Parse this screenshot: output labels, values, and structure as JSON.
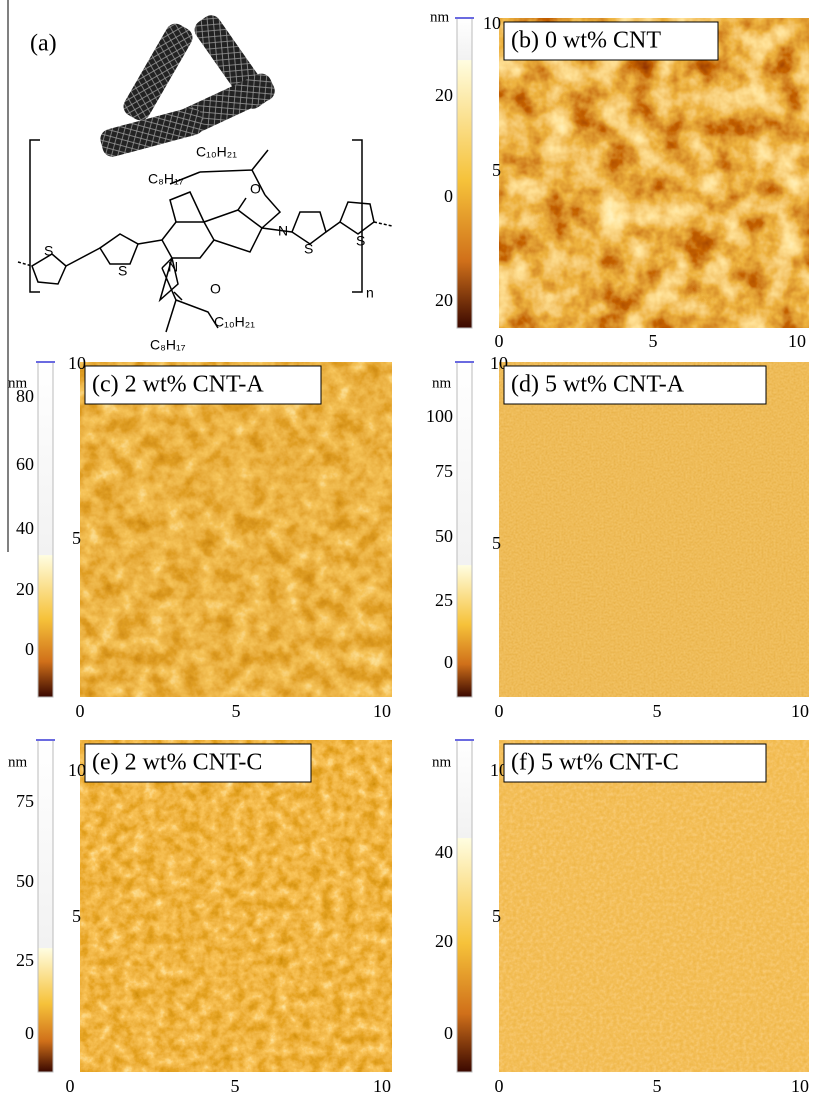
{
  "panel_a": {
    "label": "(a)",
    "atoms": [
      "C₁₀H₂₁",
      "C₈H₁₇",
      "N",
      "O",
      "O",
      "N",
      "C₁₀H₂₁",
      "C₈H₁₇",
      "S",
      "S",
      "S",
      "S",
      "n"
    ]
  },
  "panels": [
    {
      "label": "(b) 0 wt% CNT",
      "unit": "nm",
      "colorbar_ticks": [
        "20",
        "0",
        "20"
      ],
      "y_ticks": [
        "10",
        "5"
      ],
      "x_ticks": [
        "0",
        "5",
        "10"
      ]
    },
    {
      "label": "(c) 2 wt% CNT-A",
      "unit": "nm",
      "colorbar_ticks": [
        "80",
        "60",
        "40",
        "20",
        "0"
      ],
      "y_ticks": [
        "10",
        "5"
      ],
      "x_ticks": [
        "0",
        "5",
        "10"
      ]
    },
    {
      "label": "(d) 5 wt% CNT-A",
      "unit": "nm",
      "colorbar_ticks": [
        "100",
        "75",
        "50",
        "25",
        "0"
      ],
      "y_ticks": [
        "10",
        "5"
      ],
      "x_ticks": [
        "0",
        "5",
        "10"
      ]
    },
    {
      "label": "(e) 2 wt% CNT-C",
      "unit": "nm",
      "colorbar_ticks": [
        "75",
        "50",
        "25",
        "0"
      ],
      "y_ticks": [
        "10",
        "5"
      ],
      "x_ticks": [
        "0",
        "5",
        "10"
      ]
    },
    {
      "label": "(f) 5 wt% CNT-C",
      "unit": "nm",
      "colorbar_ticks": [
        "40",
        "20",
        "0"
      ],
      "y_ticks": [
        "10",
        "5"
      ],
      "x_ticks": [
        "0",
        "5",
        "10"
      ]
    }
  ]
}
